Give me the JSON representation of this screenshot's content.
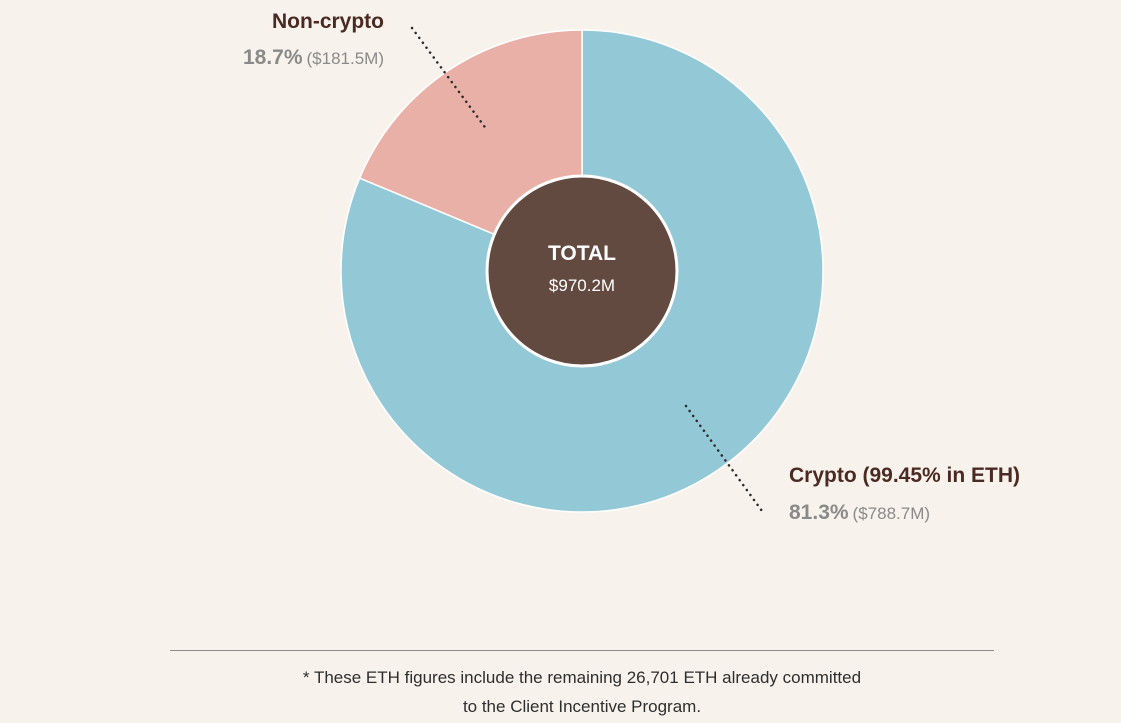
{
  "chart_data": {
    "type": "pie",
    "style": "donut",
    "slices": [
      {
        "id": "crypto",
        "label": "Crypto (99.45% in ETH)",
        "percent": 81.3,
        "percent_label": "81.3%",
        "amount_label": "($788.7M)",
        "color": "#93c9d6"
      },
      {
        "id": "noncrypto",
        "label": "Non-crypto",
        "percent": 18.7,
        "percent_label": "18.7%",
        "amount_label": "($181.5M)",
        "color": "#e9b0a8"
      }
    ],
    "center": {
      "title": "TOTAL",
      "amount": "$970.2M",
      "color": "#624a41"
    }
  },
  "footnote": {
    "line1": "* These ETH figures include the remaining 26,701 ETH already committed",
    "line2": "to the Client Incentive Program."
  },
  "colors": {
    "background": "#f7f3ec",
    "label_title": "#4a2a22",
    "label_value": "#8a8a8a",
    "leader_line": "#2b2b2b"
  }
}
